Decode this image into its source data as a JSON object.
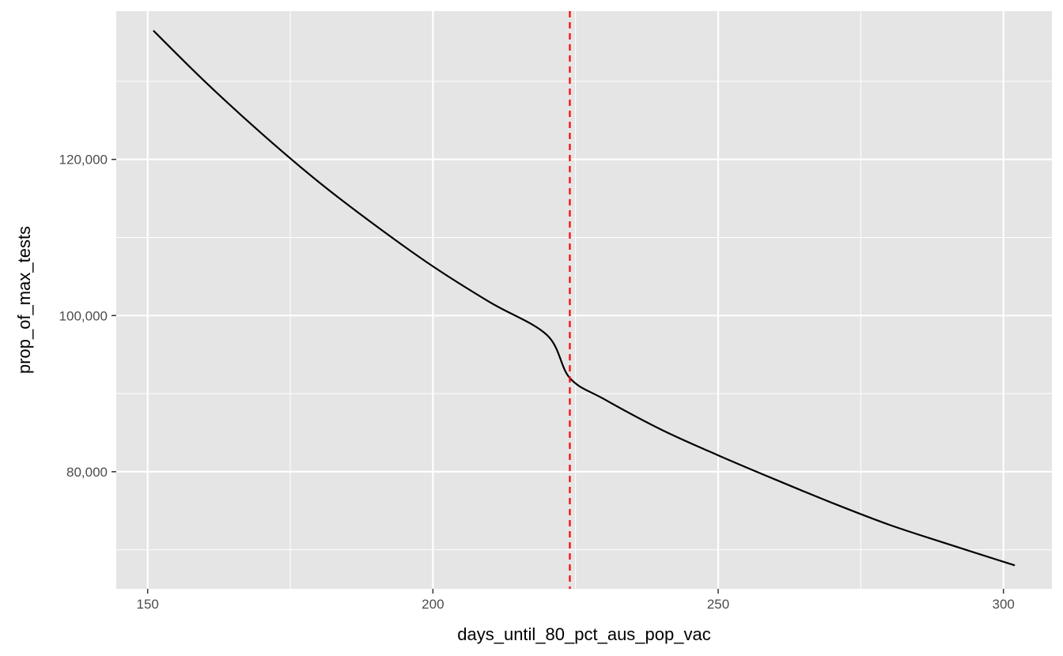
{
  "chart_data": {
    "type": "line",
    "title": "",
    "xlabel": "days_until_80_pct_aus_pop_vac",
    "ylabel": "prop_of_max_tests",
    "xlim": [
      144.5,
      308.5
    ],
    "ylim": [
      65000,
      139000
    ],
    "x_ticks": [
      150,
      200,
      250,
      300
    ],
    "x_tick_labels": [
      "150",
      "200",
      "250",
      "300"
    ],
    "y_ticks": [
      80000,
      100000,
      120000
    ],
    "y_tick_labels": [
      "80,000",
      "100,000",
      "120,000"
    ],
    "grid": true,
    "series": [
      {
        "x": [
          151,
          160,
          170,
          180,
          190,
          200,
          210,
          220,
          224,
          230,
          240,
          250,
          260,
          270,
          280,
          290,
          302
        ],
        "y": [
          136500,
          130000,
          123300,
          117100,
          111500,
          106300,
          101700,
          97500,
          92000,
          89300,
          85400,
          82100,
          79000,
          76000,
          73200,
          70800,
          68000
        ]
      }
    ],
    "reference_line": {
      "x": 224,
      "color": "#ff0000",
      "style": "dashed"
    },
    "colors": {
      "panel": "#e5e5e5",
      "grid": "#ffffff",
      "line": "#000000",
      "tick_text": "#4d4d4d"
    }
  }
}
